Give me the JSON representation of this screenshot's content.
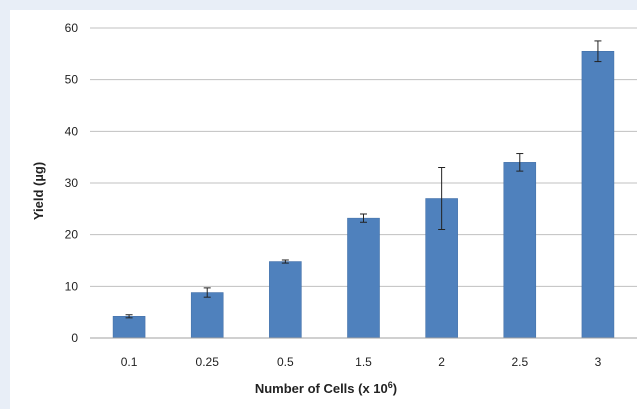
{
  "chart_data": {
    "type": "bar",
    "categories": [
      "0.1",
      "0.25",
      "0.5",
      "1.5",
      "2",
      "2.5",
      "3"
    ],
    "values": [
      4.2,
      8.8,
      14.8,
      23.2,
      27.0,
      34.0,
      55.5
    ],
    "error_low": [
      0.3,
      0.9,
      0.3,
      0.8,
      6.0,
      1.7,
      2.0
    ],
    "error_high": [
      0.3,
      0.9,
      0.3,
      0.8,
      6.0,
      1.7,
      2.0
    ],
    "xlabel_main": "Number of Cells (x 10",
    "xlabel_exp": "6",
    "xlabel_close": ")",
    "ylabel": "Yield (µg)",
    "ylim": [
      0,
      60
    ],
    "yticks": [
      0,
      10,
      20,
      30,
      40,
      50,
      60
    ],
    "grid": true,
    "bar_color": "#4f81bd",
    "bar_edge_color": "#3c6aa3",
    "grid_color": "#c0c0c0",
    "error_bar_color": "#222222"
  }
}
